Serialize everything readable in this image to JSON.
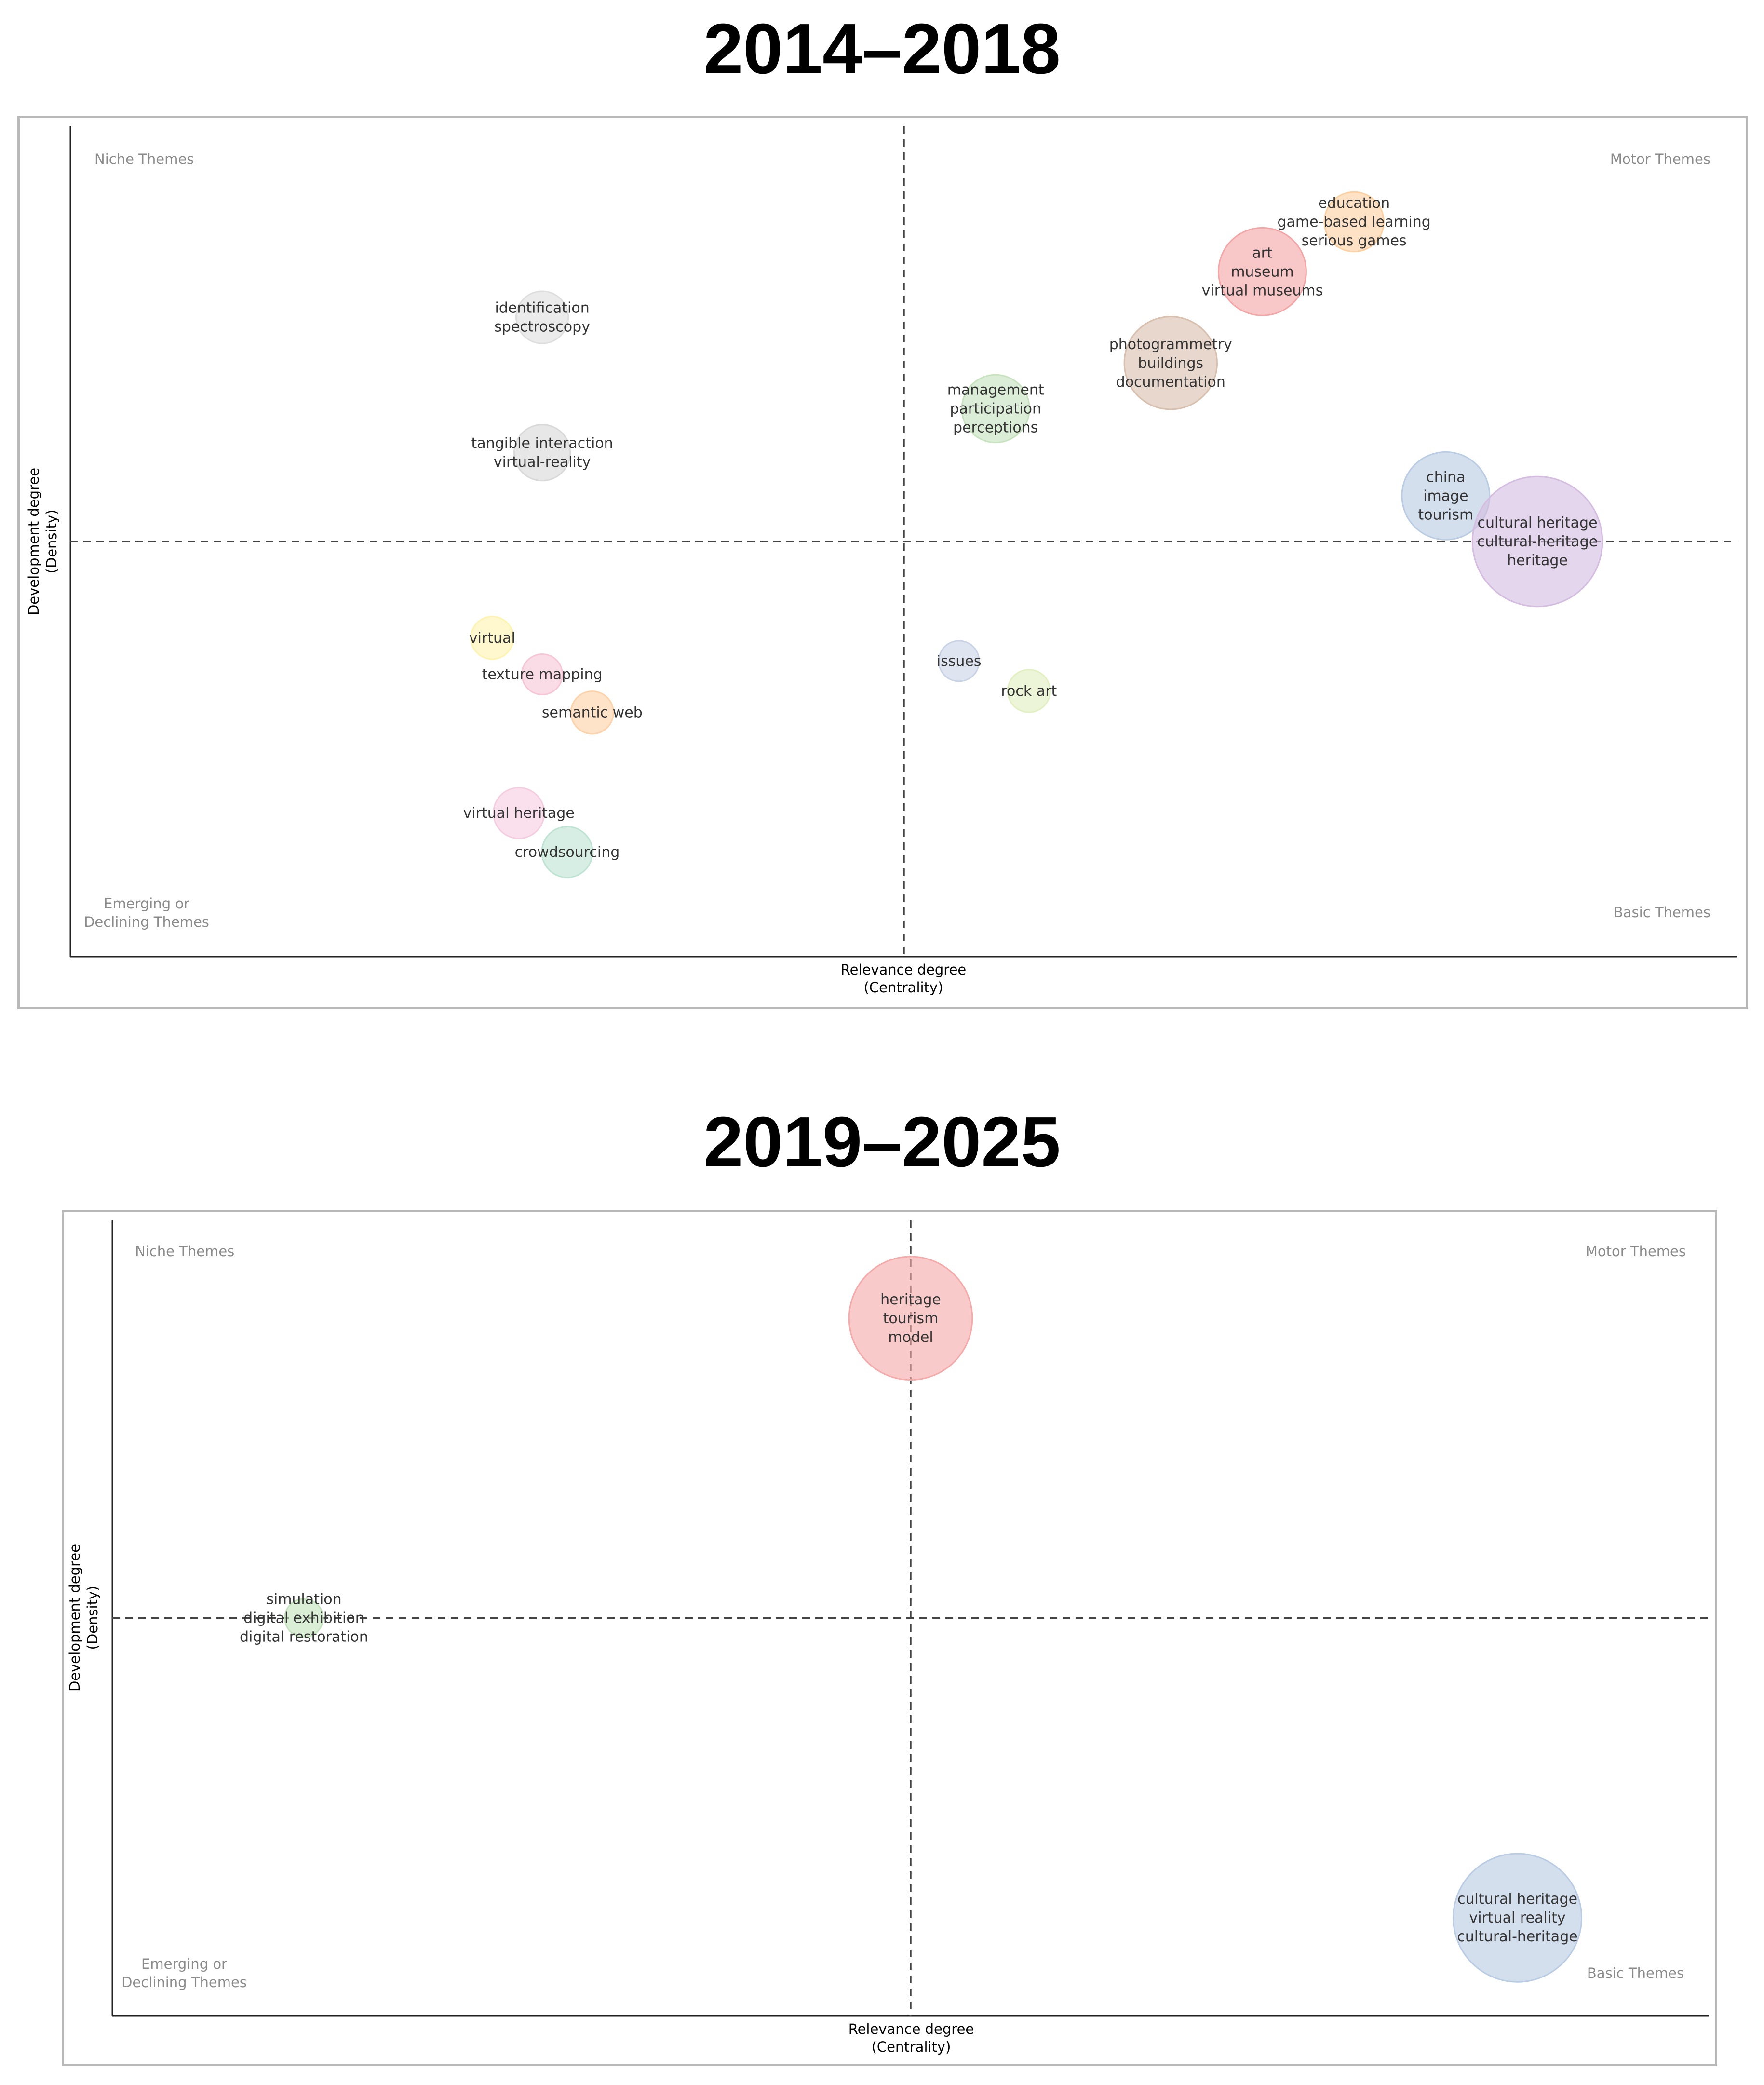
{
  "chart_data": [
    {
      "type": "scatter",
      "title": "2014–2018",
      "xlabel": [
        "Relevance degree",
        "(Centrality)"
      ],
      "ylabel": [
        "Development degree",
        "(Density)"
      ],
      "xlim": [
        0,
        100
      ],
      "ylim": [
        0,
        100
      ],
      "x_ref": 50,
      "y_ref": 50,
      "grid": false,
      "quadrant_labels": {
        "top_left": [
          "Niche Themes"
        ],
        "top_right": [
          "Motor Themes"
        ],
        "bottom_left": [
          "Emerging or",
          "Declining Themes"
        ],
        "bottom_right": [
          "Basic Themes"
        ]
      },
      "points": [
        {
          "x": 77.0,
          "y": 88.5,
          "size": 0.9,
          "color": "#fdd0a2",
          "labels": [
            "education",
            "game-based learning",
            "serious games"
          ]
        },
        {
          "x": 71.5,
          "y": 82.5,
          "size": 2.6,
          "color": "#f4a6a6",
          "labels": [
            "art",
            "museum",
            "virtual museums"
          ]
        },
        {
          "x": 66.0,
          "y": 71.5,
          "size": 3.0,
          "color": "#d8bfae",
          "labels": [
            "photogrammetry",
            "buildings",
            "documentation"
          ]
        },
        {
          "x": 55.5,
          "y": 66.0,
          "size": 1.3,
          "color": "#c7e2be",
          "labels": [
            "management",
            "participation",
            "perceptions"
          ]
        },
        {
          "x": 28.3,
          "y": 77.0,
          "size": 0.6,
          "color": "#dedede",
          "labels": [
            "identification",
            "spectroscopy"
          ]
        },
        {
          "x": 28.3,
          "y": 60.7,
          "size": 0.75,
          "color": "#d9d9d9",
          "labels": [
            "tangible interaction",
            "virtual-reality"
          ]
        },
        {
          "x": 82.5,
          "y": 55.5,
          "size": 2.6,
          "color": "#b9cce3",
          "labels": [
            "china",
            "image",
            "tourism"
          ]
        },
        {
          "x": 88.0,
          "y": 50.0,
          "size": 6.8,
          "color": "#d4bde0",
          "labels": [
            "cultural heritage",
            "cultural-heritage",
            "heritage"
          ]
        },
        {
          "x": 25.3,
          "y": 38.4,
          "size": 0.3,
          "color": "#fff3b0",
          "labels": [
            "virtual"
          ]
        },
        {
          "x": 28.3,
          "y": 34.0,
          "size": 0.25,
          "color": "#f7c6d6",
          "labels": [
            "texture mapping"
          ]
        },
        {
          "x": 31.3,
          "y": 29.4,
          "size": 0.3,
          "color": "#fdd2a8",
          "labels": [
            "semantic web"
          ]
        },
        {
          "x": 53.3,
          "y": 35.6,
          "size": 0.25,
          "color": "#c9d3e6",
          "labels": [
            "issues"
          ]
        },
        {
          "x": 57.5,
          "y": 32.0,
          "size": 0.3,
          "color": "#e2efc0",
          "labels": [
            "rock art"
          ]
        },
        {
          "x": 26.9,
          "y": 17.3,
          "size": 0.55,
          "color": "#f5cde0",
          "labels": [
            "virtual heritage"
          ]
        },
        {
          "x": 29.8,
          "y": 12.6,
          "size": 0.55,
          "color": "#bfe3d3",
          "labels": [
            "crowdsourcing"
          ]
        }
      ]
    },
    {
      "type": "scatter",
      "title": "2019–2025",
      "xlabel": [
        "Relevance degree",
        "(Centrality)"
      ],
      "ylabel": [
        "Development degree",
        "(Density)"
      ],
      "xlim": [
        0,
        100
      ],
      "ylim": [
        0,
        100
      ],
      "x_ref": 50,
      "y_ref": 50,
      "grid": false,
      "quadrant_labels": {
        "top_left": [
          "Niche Themes"
        ],
        "top_right": [
          "Motor Themes"
        ],
        "bottom_left": [
          "Emerging or",
          "Declining Themes"
        ],
        "bottom_right": [
          "Basic Themes"
        ]
      },
      "points": [
        {
          "x": 50.0,
          "y": 87.7,
          "size": 6.0,
          "color": "#f6a9a9",
          "labels": [
            "heritage",
            "tourism",
            "model"
          ]
        },
        {
          "x": 12.0,
          "y": 50.0,
          "size": 0.2,
          "color": "#c3e3bd",
          "labels": [
            "simulation",
            "digital exhibition",
            "digital restoration"
          ]
        },
        {
          "x": 88.0,
          "y": 12.3,
          "size": 6.6,
          "color": "#b9cce3",
          "labels": [
            "cultural heritage",
            "virtual reality",
            "cultural-heritage"
          ]
        }
      ]
    }
  ]
}
